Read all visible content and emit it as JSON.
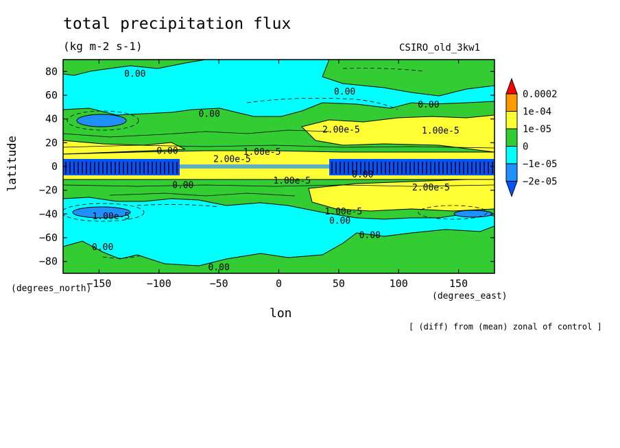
{
  "chart_data": {
    "type": "contour",
    "title": "total precipitation flux",
    "units": "(kg m-2 s-1)",
    "model_label": "CSIRO_old_3kw1",
    "note": "[ (diff) from (mean) zonal of control ]",
    "xlabel": "lon",
    "ylabel": "latitude",
    "x_units": "(degrees_east)",
    "y_units": "(degrees_north)",
    "xlim": [
      -180,
      180
    ],
    "ylim": [
      -90,
      90
    ],
    "x_ticks": [
      -150,
      -100,
      -50,
      0,
      50,
      100,
      150
    ],
    "y_ticks": [
      80,
      60,
      40,
      20,
      0,
      -20,
      -40,
      -60,
      -80
    ],
    "colorbar": {
      "labels": [
        "0.0002",
        "1e-04",
        "1e-05",
        "0",
        "−1e-05",
        "−2e-05"
      ],
      "colors": [
        "#ff0000",
        "#ff9900",
        "#ffff33",
        "#33cc33",
        "#00ffff",
        "#1e90ff",
        "#0055ff"
      ]
    },
    "contour_labels": [
      {
        "text": "0.00",
        "lon": -120,
        "lat": 78
      },
      {
        "text": "0.00",
        "lon": 55,
        "lat": 63
      },
      {
        "text": "0.00",
        "lon": 125,
        "lat": 52
      },
      {
        "text": "0.00",
        "lon": -58,
        "lat": 44
      },
      {
        "text": "2.00e-5",
        "lon": 52,
        "lat": 31
      },
      {
        "text": "1.00e-5",
        "lon": 135,
        "lat": 30
      },
      {
        "text": "0.00",
        "lon": -93,
        "lat": 13
      },
      {
        "text": "1.00e-5",
        "lon": -14,
        "lat": 12
      },
      {
        "text": "2.00e-5",
        "lon": -39,
        "lat": 6
      },
      {
        "text": "0.00",
        "lon": -80,
        "lat": -16
      },
      {
        "text": "1.00e-5",
        "lon": 11,
        "lat": -12
      },
      {
        "text": "0.00",
        "lon": 70,
        "lat": -7
      },
      {
        "text": "2.00e-5",
        "lon": 127,
        "lat": -18
      },
      {
        "text": "1.00e-5",
        "lon": -140,
        "lat": -42
      },
      {
        "text": "1.00e-5",
        "lon": 54,
        "lat": -38
      },
      {
        "text": "0.00",
        "lon": 51,
        "lat": -46
      },
      {
        "text": "0.00",
        "lon": 76,
        "lat": -58
      },
      {
        "text": "0.00",
        "lon": -147,
        "lat": -68
      },
      {
        "text": "0.00",
        "lon": -50,
        "lat": -85
      }
    ]
  }
}
